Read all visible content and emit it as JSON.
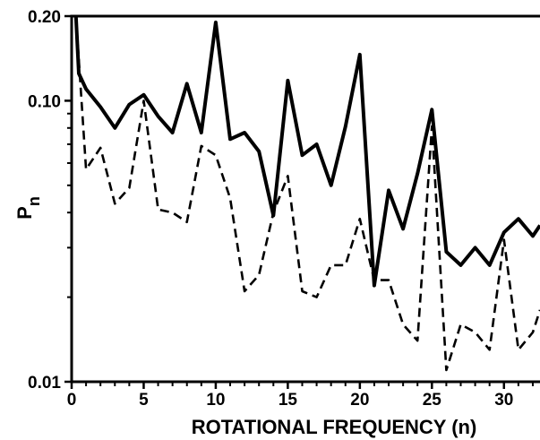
{
  "chart_data": {
    "type": "line",
    "title": "",
    "xlabel": "ROTATIONAL FREQUENCY (n)",
    "ylabel": "P",
    "ylabel_subscript": "n",
    "xlim": [
      0,
      32.5
    ],
    "ylim": [
      0.01,
      0.2
    ],
    "yscale": "log",
    "grid": false,
    "legend": "none",
    "x_ticks": [
      0,
      5,
      10,
      15,
      20,
      25,
      30
    ],
    "y_ticks": [
      0.01,
      0.1,
      0.2
    ],
    "y_tick_labels": [
      "0.01",
      "0.10",
      "0.20"
    ],
    "series": [
      {
        "style": "solid",
        "color": "#000000",
        "x": [
          0.3,
          0.5,
          1,
          2,
          3,
          4,
          5,
          6,
          7,
          8,
          9,
          10,
          11,
          12,
          13,
          14,
          15,
          16,
          17,
          18,
          19,
          20,
          21,
          22,
          23,
          24,
          25,
          26,
          27,
          28,
          29,
          30,
          31,
          32,
          32.5
        ],
        "values": [
          0.2,
          0.125,
          0.11,
          0.095,
          0.08,
          0.097,
          0.105,
          0.088,
          0.077,
          0.115,
          0.077,
          0.19,
          0.073,
          0.077,
          0.066,
          0.039,
          0.118,
          0.064,
          0.07,
          0.05,
          0.081,
          0.146,
          0.022,
          0.048,
          0.035,
          0.055,
          0.093,
          0.029,
          0.026,
          0.03,
          0.026,
          0.034,
          0.038,
          0.033,
          0.036
        ]
      },
      {
        "style": "dashed",
        "color": "#000000",
        "x": [
          0.3,
          1,
          2,
          3,
          4,
          5,
          6,
          7,
          8,
          9,
          10,
          11,
          12,
          13,
          14,
          15,
          16,
          17,
          18,
          19,
          20,
          21,
          22,
          23,
          24,
          25,
          26,
          27,
          28,
          29,
          30,
          31,
          32,
          32.5
        ],
        "values": [
          0.2,
          0.057,
          0.068,
          0.043,
          0.049,
          0.1,
          0.041,
          0.04,
          0.037,
          0.069,
          0.064,
          0.045,
          0.021,
          0.024,
          0.04,
          0.054,
          0.021,
          0.02,
          0.026,
          0.026,
          0.038,
          0.023,
          0.023,
          0.016,
          0.014,
          0.081,
          0.011,
          0.016,
          0.015,
          0.013,
          0.032,
          0.013,
          0.015,
          0.018
        ]
      }
    ]
  }
}
